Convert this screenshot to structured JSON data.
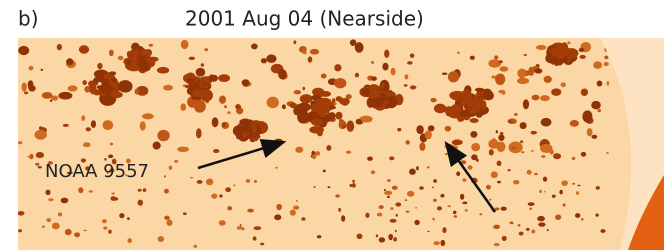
{
  "panel_label": "b)",
  "title": "2001 Aug 04 (Nearside)",
  "annotation": "NOAA 9557"
}
